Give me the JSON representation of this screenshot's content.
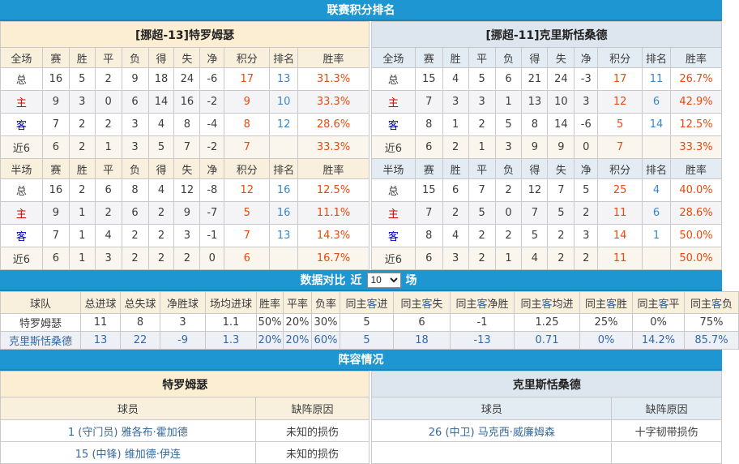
{
  "bands": {
    "standings": "联赛积分排名",
    "compare": "数据对比",
    "lineup": "阵容情况"
  },
  "colors": {
    "band_bg": "#1E96D2",
    "home_title_bg": "#FCEED3",
    "home_header_bg": "#F8F0DD",
    "away_title_bg": "#DDE6EE",
    "away_header_bg": "#E3ECF3",
    "points_red": "#E8490F",
    "rank_blue": "#3C86C6",
    "home_label_red": "#CC0000",
    "away_label_blue": "#0000BB",
    "player_link_blue": "#36689A"
  },
  "stat_columns": [
    "赛",
    "胜",
    "平",
    "负",
    "得",
    "失",
    "净",
    "积分",
    "排名",
    "胜率"
  ],
  "standings": {
    "left": {
      "title": "[挪超-13]特罗姆瑟",
      "full": {
        "label": "全场",
        "rows": [
          [
            "总",
            "16",
            "5",
            "2",
            "9",
            "18",
            "24",
            "-6",
            "17",
            "13",
            "31.3%"
          ],
          [
            "主",
            "9",
            "3",
            "0",
            "6",
            "14",
            "16",
            "-2",
            "9",
            "10",
            "33.3%"
          ],
          [
            "客",
            "7",
            "2",
            "2",
            "3",
            "4",
            "8",
            "-4",
            "8",
            "12",
            "28.6%"
          ],
          [
            "近6",
            "6",
            "2",
            "1",
            "3",
            "5",
            "7",
            "-2",
            "7",
            "",
            "33.3%"
          ]
        ]
      },
      "half": {
        "label": "半场",
        "rows": [
          [
            "总",
            "16",
            "2",
            "6",
            "8",
            "4",
            "12",
            "-8",
            "12",
            "16",
            "12.5%"
          ],
          [
            "主",
            "9",
            "1",
            "2",
            "6",
            "2",
            "9",
            "-7",
            "5",
            "16",
            "11.1%"
          ],
          [
            "客",
            "7",
            "1",
            "4",
            "2",
            "2",
            "3",
            "-1",
            "7",
            "13",
            "14.3%"
          ],
          [
            "近6",
            "6",
            "1",
            "3",
            "2",
            "2",
            "2",
            "0",
            "6",
            "",
            "16.7%"
          ]
        ]
      }
    },
    "right": {
      "title": "[挪超-11]克里斯恬桑德",
      "full": {
        "label": "全场",
        "rows": [
          [
            "总",
            "15",
            "4",
            "5",
            "6",
            "21",
            "24",
            "-3",
            "17",
            "11",
            "26.7%"
          ],
          [
            "主",
            "7",
            "3",
            "3",
            "1",
            "13",
            "10",
            "3",
            "12",
            "6",
            "42.9%"
          ],
          [
            "客",
            "8",
            "1",
            "2",
            "5",
            "8",
            "14",
            "-6",
            "5",
            "14",
            "12.5%"
          ],
          [
            "近6",
            "6",
            "2",
            "1",
            "3",
            "9",
            "9",
            "0",
            "7",
            "",
            "33.3%"
          ]
        ]
      },
      "half": {
        "label": "半场",
        "rows": [
          [
            "总",
            "15",
            "6",
            "7",
            "2",
            "12",
            "7",
            "5",
            "25",
            "4",
            "40.0%"
          ],
          [
            "主",
            "7",
            "2",
            "5",
            "0",
            "7",
            "5",
            "2",
            "11",
            "6",
            "28.6%"
          ],
          [
            "客",
            "8",
            "4",
            "2",
            "2",
            "5",
            "2",
            "3",
            "14",
            "1",
            "50.0%"
          ],
          [
            "近6",
            "6",
            "3",
            "2",
            "1",
            "4",
            "2",
            "2",
            "11",
            "",
            "50.0%"
          ]
        ]
      }
    }
  },
  "compare_controls": {
    "near": "近",
    "games": "场",
    "value": "10"
  },
  "compare": {
    "columns": [
      {
        "parts": [
          "球队"
        ]
      },
      {
        "parts": [
          "总进球"
        ]
      },
      {
        "parts": [
          "总失球"
        ]
      },
      {
        "parts": [
          "净胜球"
        ]
      },
      {
        "parts": [
          "场均进球"
        ]
      },
      {
        "parts": [
          "胜率"
        ]
      },
      {
        "parts": [
          "平率"
        ]
      },
      {
        "parts": [
          "负率"
        ]
      },
      {
        "parts": [
          "同主",
          "客",
          "进"
        ]
      },
      {
        "parts": [
          "同主",
          "客",
          "失"
        ]
      },
      {
        "parts": [
          "同主",
          "客",
          "净胜"
        ]
      },
      {
        "parts": [
          "同主",
          "客",
          "均进"
        ]
      },
      {
        "parts": [
          "同主",
          "客",
          "胜"
        ]
      },
      {
        "parts": [
          "同主",
          "客",
          "平"
        ]
      },
      {
        "parts": [
          "同主",
          "客",
          "负"
        ]
      }
    ],
    "rows": [
      [
        "特罗姆瑟",
        "11",
        "8",
        "3",
        "1.1",
        "50%",
        "20%",
        "30%",
        "5",
        "6",
        "-1",
        "1.25",
        "25%",
        "0%",
        "75%"
      ],
      [
        "克里斯恬桑德",
        "13",
        "22",
        "-9",
        "1.3",
        "20%",
        "20%",
        "60%",
        "5",
        "18",
        "-13",
        "0.71",
        "0%",
        "14.2%",
        "85.7%"
      ]
    ]
  },
  "lineup": {
    "columns": [
      "球员",
      "缺阵原因"
    ],
    "left": {
      "title": "特罗姆瑟",
      "rows": [
        [
          "1 (守门员) 雅各布·霍加德",
          "未知的损伤"
        ],
        [
          "15 (中锋) 维加德·伊连",
          "未知的损伤"
        ]
      ]
    },
    "right": {
      "title": "克里斯恬桑德",
      "rows": [
        [
          "26 (中卫) 马克西·威廉姆森",
          "十字韧带损伤"
        ],
        [
          "",
          ""
        ]
      ]
    }
  }
}
